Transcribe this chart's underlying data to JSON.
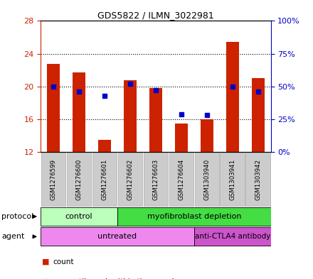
{
  "title": "GDS5822 / ILMN_3022981",
  "samples": [
    "GSM1276599",
    "GSM1276600",
    "GSM1276601",
    "GSM1276602",
    "GSM1276603",
    "GSM1276604",
    "GSM1303940",
    "GSM1303941",
    "GSM1303942"
  ],
  "counts": [
    22.8,
    21.7,
    13.5,
    20.8,
    19.8,
    15.5,
    16.0,
    25.4,
    21.0
  ],
  "percentiles": [
    50,
    46,
    43,
    52,
    47,
    29,
    28,
    50,
    46
  ],
  "ylim_left": [
    12,
    28
  ],
  "ylim_right": [
    0,
    100
  ],
  "yticks_left": [
    12,
    16,
    20,
    24,
    28
  ],
  "yticks_right": [
    0,
    25,
    50,
    75,
    100
  ],
  "bar_color": "#cc2200",
  "dot_color": "#0000cc",
  "bar_width": 0.5,
  "baseline": 12,
  "protocol_color_light": "#bbffbb",
  "protocol_color_bright": "#44dd44",
  "agent_color": "#ee88ee",
  "agent_color2": "#cc55cc",
  "grid_color": "#000000",
  "bg_color": "#ffffff",
  "panel_bg": "#cccccc",
  "names_bg": "#dddddd"
}
